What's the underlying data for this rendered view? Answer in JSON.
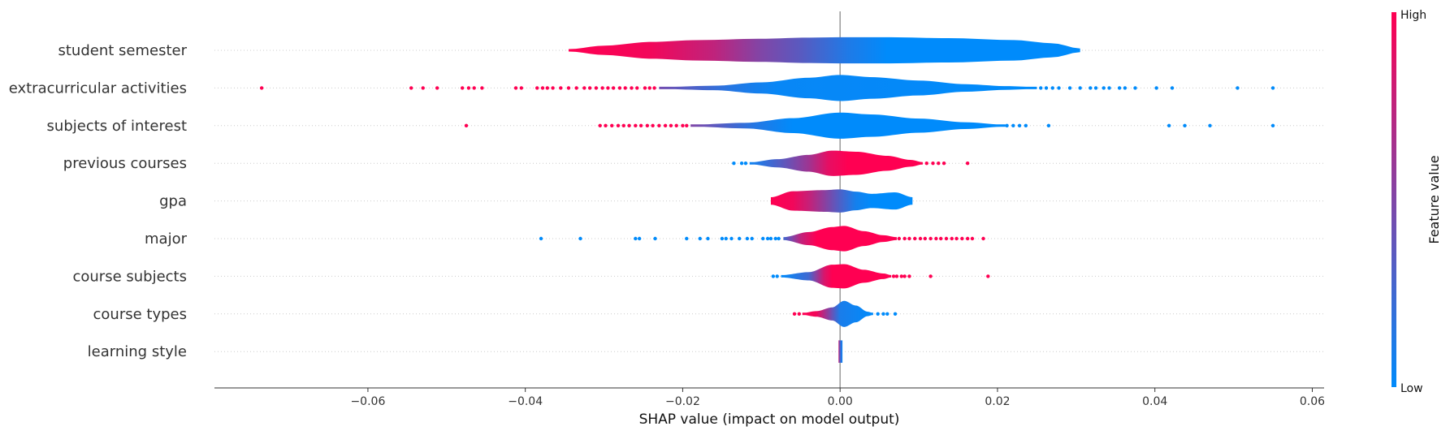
{
  "chart_data": {
    "type": "violin",
    "xlabel": "SHAP value (impact on model output)",
    "xlim": [
      -0.0795,
      0.0615
    ],
    "xticks": [
      -0.06,
      -0.04,
      -0.02,
      0.0,
      0.02,
      0.04,
      0.06
    ],
    "xtick_labels": [
      "−0.06",
      "−0.04",
      "−0.02",
      "0.00",
      "0.02",
      "0.04",
      "0.06"
    ],
    "zero_line": 0,
    "grid": "dotted horizontal per feature",
    "colorbar": {
      "title": "Feature value",
      "high_label": "High",
      "low_label": "Low",
      "high_color": "#ff0052",
      "low_color": "#008bfb"
    },
    "features": [
      {
        "name": "student semester",
        "range": [
          -0.0345,
          0.0305
        ],
        "profile": [
          [
            -0.0345,
            0.06
          ],
          [
            -0.03,
            0.25
          ],
          [
            -0.024,
            0.45
          ],
          [
            -0.018,
            0.55
          ],
          [
            -0.01,
            0.62
          ],
          [
            -0.004,
            0.68
          ],
          [
            0,
            0.7
          ],
          [
            0.006,
            0.7
          ],
          [
            0.014,
            0.65
          ],
          [
            0.022,
            0.55
          ],
          [
            0.027,
            0.38
          ],
          [
            0.0305,
            0.1
          ]
        ],
        "color_stops": [
          [
            -0.0345,
            1.0
          ],
          [
            -0.024,
            0.95
          ],
          [
            -0.016,
            0.75
          ],
          [
            -0.01,
            0.5
          ],
          [
            -0.005,
            0.35
          ],
          [
            0.001,
            0.12
          ],
          [
            0.006,
            0.0
          ],
          [
            0.0305,
            0.0
          ]
        ],
        "outliers": []
      },
      {
        "name": "extracurricular activities",
        "range": [
          -0.023,
          0.025
        ],
        "profile": [
          [
            -0.023,
            0.05
          ],
          [
            -0.016,
            0.12
          ],
          [
            -0.01,
            0.3
          ],
          [
            -0.004,
            0.55
          ],
          [
            0,
            0.7
          ],
          [
            0.004,
            0.58
          ],
          [
            0.01,
            0.4
          ],
          [
            0.016,
            0.2
          ],
          [
            0.021,
            0.1
          ],
          [
            0.025,
            0.05
          ]
        ],
        "color_stops": [
          [
            -0.023,
            0.45
          ],
          [
            -0.014,
            0.15
          ],
          [
            -0.008,
            0.03
          ],
          [
            0.025,
            0.0
          ]
        ],
        "outliers": [
          {
            "x": -0.0735,
            "h": 1
          },
          {
            "x": -0.0545,
            "h": 1
          },
          {
            "x": -0.053,
            "h": 1
          },
          {
            "x": -0.0512,
            "h": 1
          },
          {
            "x": -0.048,
            "h": 1
          },
          {
            "x": -0.0472,
            "h": 1
          },
          {
            "x": -0.0465,
            "h": 1
          },
          {
            "x": -0.0455,
            "h": 1
          },
          {
            "x": -0.0412,
            "h": 1
          },
          {
            "x": -0.0405,
            "h": 1
          },
          {
            "x": -0.0385,
            "h": 1
          },
          {
            "x": -0.0378,
            "h": 1
          },
          {
            "x": -0.0372,
            "h": 1
          },
          {
            "x": -0.0365,
            "h": 1
          },
          {
            "x": -0.0355,
            "h": 1
          },
          {
            "x": -0.0345,
            "h": 1
          },
          {
            "x": -0.0335,
            "h": 1
          },
          {
            "x": -0.0325,
            "h": 1
          },
          {
            "x": -0.0318,
            "h": 1
          },
          {
            "x": -0.031,
            "h": 1
          },
          {
            "x": -0.0302,
            "h": 1
          },
          {
            "x": -0.0295,
            "h": 1
          },
          {
            "x": -0.0288,
            "h": 1
          },
          {
            "x": -0.028,
            "h": 1
          },
          {
            "x": -0.0273,
            "h": 1
          },
          {
            "x": -0.0265,
            "h": 1
          },
          {
            "x": -0.0258,
            "h": 1
          },
          {
            "x": -0.0248,
            "h": 1
          },
          {
            "x": -0.0242,
            "h": 1
          },
          {
            "x": -0.0236,
            "h": 1
          },
          {
            "x": 0.0255,
            "h": 0
          },
          {
            "x": 0.0262,
            "h": 0
          },
          {
            "x": 0.027,
            "h": 0
          },
          {
            "x": 0.0278,
            "h": 0
          },
          {
            "x": 0.0292,
            "h": 0
          },
          {
            "x": 0.0305,
            "h": 0
          },
          {
            "x": 0.0318,
            "h": 0
          },
          {
            "x": 0.0325,
            "h": 0
          },
          {
            "x": 0.0335,
            "h": 0
          },
          {
            "x": 0.0342,
            "h": 0
          },
          {
            "x": 0.0355,
            "h": 0
          },
          {
            "x": 0.0362,
            "h": 0
          },
          {
            "x": 0.0375,
            "h": 0
          },
          {
            "x": 0.0402,
            "h": 0
          },
          {
            "x": 0.0422,
            "h": 0
          },
          {
            "x": 0.0505,
            "h": 0
          },
          {
            "x": 0.055,
            "h": 0
          }
        ]
      },
      {
        "name": "subjects of interest",
        "range": [
          -0.019,
          0.021
        ],
        "profile": [
          [
            -0.019,
            0.05
          ],
          [
            -0.012,
            0.15
          ],
          [
            -0.006,
            0.4
          ],
          [
            0,
            0.7
          ],
          [
            0.004,
            0.6
          ],
          [
            0.01,
            0.38
          ],
          [
            0.016,
            0.18
          ],
          [
            0.021,
            0.05
          ]
        ],
        "color_stops": [
          [
            -0.019,
            0.5
          ],
          [
            -0.011,
            0.15
          ],
          [
            -0.006,
            0.0
          ],
          [
            0.021,
            0.0
          ]
        ],
        "outliers": [
          {
            "x": -0.0475,
            "h": 1
          },
          {
            "x": -0.0305,
            "h": 1
          },
          {
            "x": -0.0298,
            "h": 1
          },
          {
            "x": -0.029,
            "h": 1
          },
          {
            "x": -0.0282,
            "h": 1
          },
          {
            "x": -0.0275,
            "h": 1
          },
          {
            "x": -0.0268,
            "h": 1
          },
          {
            "x": -0.026,
            "h": 1
          },
          {
            "x": -0.0253,
            "h": 1
          },
          {
            "x": -0.0245,
            "h": 1
          },
          {
            "x": -0.0238,
            "h": 1
          },
          {
            "x": -0.023,
            "h": 1
          },
          {
            "x": -0.0222,
            "h": 1
          },
          {
            "x": -0.0215,
            "h": 1
          },
          {
            "x": -0.0208,
            "h": 1
          },
          {
            "x": -0.02,
            "h": 1
          },
          {
            "x": -0.0195,
            "h": 1
          },
          {
            "x": 0.0212,
            "h": 0
          },
          {
            "x": 0.022,
            "h": 0
          },
          {
            "x": 0.0228,
            "h": 0
          },
          {
            "x": 0.0236,
            "h": 0
          },
          {
            "x": 0.0265,
            "h": 0
          },
          {
            "x": 0.0418,
            "h": 0
          },
          {
            "x": 0.0438,
            "h": 0
          },
          {
            "x": 0.047,
            "h": 0
          },
          {
            "x": 0.055,
            "h": 0
          }
        ]
      },
      {
        "name": "previous courses",
        "range": [
          -0.0115,
          0.0105
        ],
        "profile": [
          [
            -0.0115,
            0.05
          ],
          [
            -0.008,
            0.22
          ],
          [
            -0.004,
            0.45
          ],
          [
            -0.001,
            0.68
          ],
          [
            0.002,
            0.62
          ],
          [
            0.006,
            0.4
          ],
          [
            0.009,
            0.18
          ],
          [
            0.0105,
            0.06
          ]
        ],
        "color_stops": [
          [
            -0.0115,
            0.05
          ],
          [
            -0.008,
            0.3
          ],
          [
            -0.004,
            0.62
          ],
          [
            -0.0015,
            0.9
          ],
          [
            0.001,
            1.0
          ],
          [
            0.0105,
            1.0
          ]
        ],
        "outliers": [
          {
            "x": -0.0135,
            "h": 0
          },
          {
            "x": -0.0125,
            "h": 0
          },
          {
            "x": -0.012,
            "h": 0
          },
          {
            "x": 0.011,
            "h": 1
          },
          {
            "x": 0.0118,
            "h": 1
          },
          {
            "x": 0.0125,
            "h": 1
          },
          {
            "x": 0.0132,
            "h": 1
          },
          {
            "x": 0.0162,
            "h": 1
          }
        ]
      },
      {
        "name": "gpa",
        "range": [
          -0.0088,
          0.0092
        ],
        "profile": [
          [
            -0.0088,
            0.2
          ],
          [
            -0.006,
            0.52
          ],
          [
            -0.002,
            0.58
          ],
          [
            0.0,
            0.62
          ],
          [
            0.002,
            0.5
          ],
          [
            0.004,
            0.38
          ],
          [
            0.007,
            0.46
          ],
          [
            0.0092,
            0.2
          ]
        ],
        "color_stops": [
          [
            -0.0088,
            1.0
          ],
          [
            -0.006,
            0.95
          ],
          [
            -0.004,
            0.78
          ],
          [
            -0.002,
            0.55
          ],
          [
            0.0,
            0.3
          ],
          [
            0.002,
            0.08
          ],
          [
            0.004,
            0.0
          ],
          [
            0.0092,
            0.0
          ]
        ],
        "outliers": []
      },
      {
        "name": "major",
        "range": [
          -0.0072,
          0.0072
        ],
        "profile": [
          [
            -0.0072,
            0.08
          ],
          [
            -0.004,
            0.35
          ],
          [
            -0.001,
            0.62
          ],
          [
            0.0005,
            0.68
          ],
          [
            0.003,
            0.4
          ],
          [
            0.0055,
            0.18
          ],
          [
            0.0072,
            0.08
          ]
        ],
        "color_stops": [
          [
            -0.0072,
            0.25
          ],
          [
            -0.005,
            0.75
          ],
          [
            -0.003,
            1.0
          ],
          [
            0.0072,
            1.0
          ]
        ],
        "outliers": [
          {
            "x": -0.038,
            "h": 0
          },
          {
            "x": -0.033,
            "h": 0
          },
          {
            "x": -0.026,
            "h": 0
          },
          {
            "x": -0.0255,
            "h": 0
          },
          {
            "x": -0.0235,
            "h": 0
          },
          {
            "x": -0.0195,
            "h": 0
          },
          {
            "x": -0.0178,
            "h": 0
          },
          {
            "x": -0.0168,
            "h": 0
          },
          {
            "x": -0.015,
            "h": 0
          },
          {
            "x": -0.0145,
            "h": 0
          },
          {
            "x": -0.0138,
            "h": 0
          },
          {
            "x": -0.0128,
            "h": 0
          },
          {
            "x": -0.0118,
            "h": 0
          },
          {
            "x": -0.0112,
            "h": 0
          },
          {
            "x": -0.0098,
            "h": 0
          },
          {
            "x": -0.0092,
            "h": 0
          },
          {
            "x": -0.0088,
            "h": 0
          },
          {
            "x": -0.0082,
            "h": 0
          },
          {
            "x": -0.0078,
            "h": 0
          },
          {
            "x": 0.0075,
            "h": 1
          },
          {
            "x": 0.0082,
            "h": 1
          },
          {
            "x": 0.0088,
            "h": 1
          },
          {
            "x": 0.0095,
            "h": 1
          },
          {
            "x": 0.0102,
            "h": 1
          },
          {
            "x": 0.0108,
            "h": 1
          },
          {
            "x": 0.0115,
            "h": 1
          },
          {
            "x": 0.0122,
            "h": 1
          },
          {
            "x": 0.0128,
            "h": 1
          },
          {
            "x": 0.0135,
            "h": 1
          },
          {
            "x": 0.0142,
            "h": 1
          },
          {
            "x": 0.0148,
            "h": 1
          },
          {
            "x": 0.0155,
            "h": 1
          },
          {
            "x": 0.0162,
            "h": 1
          },
          {
            "x": 0.0168,
            "h": 1
          },
          {
            "x": 0.0182,
            "h": 1
          }
        ]
      },
      {
        "name": "course subjects",
        "range": [
          -0.0075,
          0.0065
        ],
        "profile": [
          [
            -0.0075,
            0.06
          ],
          [
            -0.004,
            0.22
          ],
          [
            -0.001,
            0.62
          ],
          [
            0.0005,
            0.65
          ],
          [
            0.003,
            0.35
          ],
          [
            0.0055,
            0.15
          ],
          [
            0.0065,
            0.06
          ]
        ],
        "color_stops": [
          [
            -0.0075,
            0.0
          ],
          [
            -0.004,
            0.25
          ],
          [
            -0.002,
            0.85
          ],
          [
            -0.001,
            1.0
          ],
          [
            0.0065,
            1.0
          ]
        ],
        "outliers": [
          {
            "x": -0.0085,
            "h": 0
          },
          {
            "x": -0.008,
            "h": 0
          },
          {
            "x": 0.0068,
            "h": 1
          },
          {
            "x": 0.0072,
            "h": 1
          },
          {
            "x": 0.0078,
            "h": 1
          },
          {
            "x": 0.0082,
            "h": 1
          },
          {
            "x": 0.0088,
            "h": 1
          },
          {
            "x": 0.0115,
            "h": 1
          },
          {
            "x": 0.0188,
            "h": 1
          }
        ]
      },
      {
        "name": "course types",
        "range": [
          -0.0048,
          0.0042
        ],
        "profile": [
          [
            -0.0048,
            0.05
          ],
          [
            -0.003,
            0.15
          ],
          [
            -0.001,
            0.35
          ],
          [
            0.0005,
            0.7
          ],
          [
            0.002,
            0.45
          ],
          [
            0.0035,
            0.12
          ],
          [
            0.0042,
            0.05
          ]
        ],
        "color_stops": [
          [
            -0.0048,
            1.0
          ],
          [
            -0.003,
            0.95
          ],
          [
            -0.0015,
            0.55
          ],
          [
            0.0,
            0.1
          ],
          [
            0.0042,
            0.0
          ]
        ],
        "outliers": [
          {
            "x": -0.0058,
            "h": 1
          },
          {
            "x": -0.0052,
            "h": 1
          },
          {
            "x": 0.0048,
            "h": 0
          },
          {
            "x": 0.0055,
            "h": 0
          },
          {
            "x": 0.006,
            "h": 0
          },
          {
            "x": 0.007,
            "h": 0
          }
        ]
      },
      {
        "name": "learning style",
        "range": [
          -0.0002,
          0.0003
        ],
        "profile": [
          [
            -0.0002,
            0.6
          ],
          [
            0.0003,
            0.6
          ]
        ],
        "color_stops": [
          [
            -0.0002,
            0.8
          ],
          [
            0.0,
            0.3
          ],
          [
            0.0003,
            0.0
          ]
        ],
        "outliers": []
      }
    ]
  }
}
